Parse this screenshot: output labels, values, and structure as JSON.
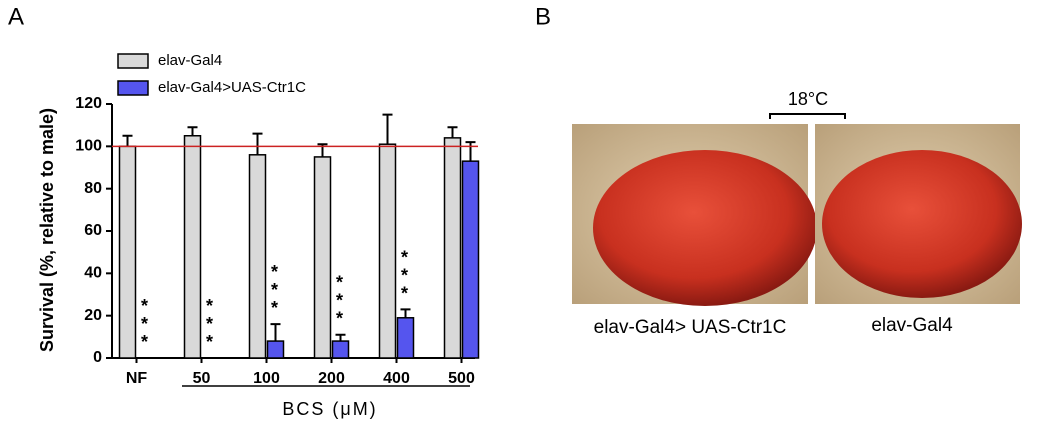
{
  "chart_data": {
    "type": "bar",
    "y_label": "Survival (%, relative to male)",
    "x_label": "BCS (μM)",
    "categories": [
      "NF",
      "50",
      "100",
      "200",
      "400",
      "500"
    ],
    "series": [
      {
        "name": "elav-Gal4",
        "color": "#d9d9d9",
        "values": [
          100,
          105,
          96,
          95,
          101,
          104
        ],
        "errors": [
          5,
          4,
          10,
          6,
          14,
          5
        ]
      },
      {
        "name": "elav-Gal4>UAS-Ctr1C",
        "color": "#5555ee",
        "values": [
          0,
          0,
          8,
          8,
          19,
          93
        ],
        "errors": [
          null,
          null,
          8,
          3,
          4,
          9
        ]
      }
    ],
    "annotations": [
      "***",
      "***",
      "***",
      "***",
      "***",
      null
    ],
    "reference_line": {
      "value": 100,
      "color": "#cc2222"
    },
    "ylim": [
      0,
      120
    ],
    "yticks": [
      0,
      20,
      40,
      60,
      80,
      100,
      120
    ]
  },
  "panel_labels": [
    "A",
    "B"
  ],
  "panel_b": {
    "temperature": "18°C",
    "captions": [
      "elav-Gal4> UAS-Ctr1C",
      "elav-Gal4"
    ]
  }
}
